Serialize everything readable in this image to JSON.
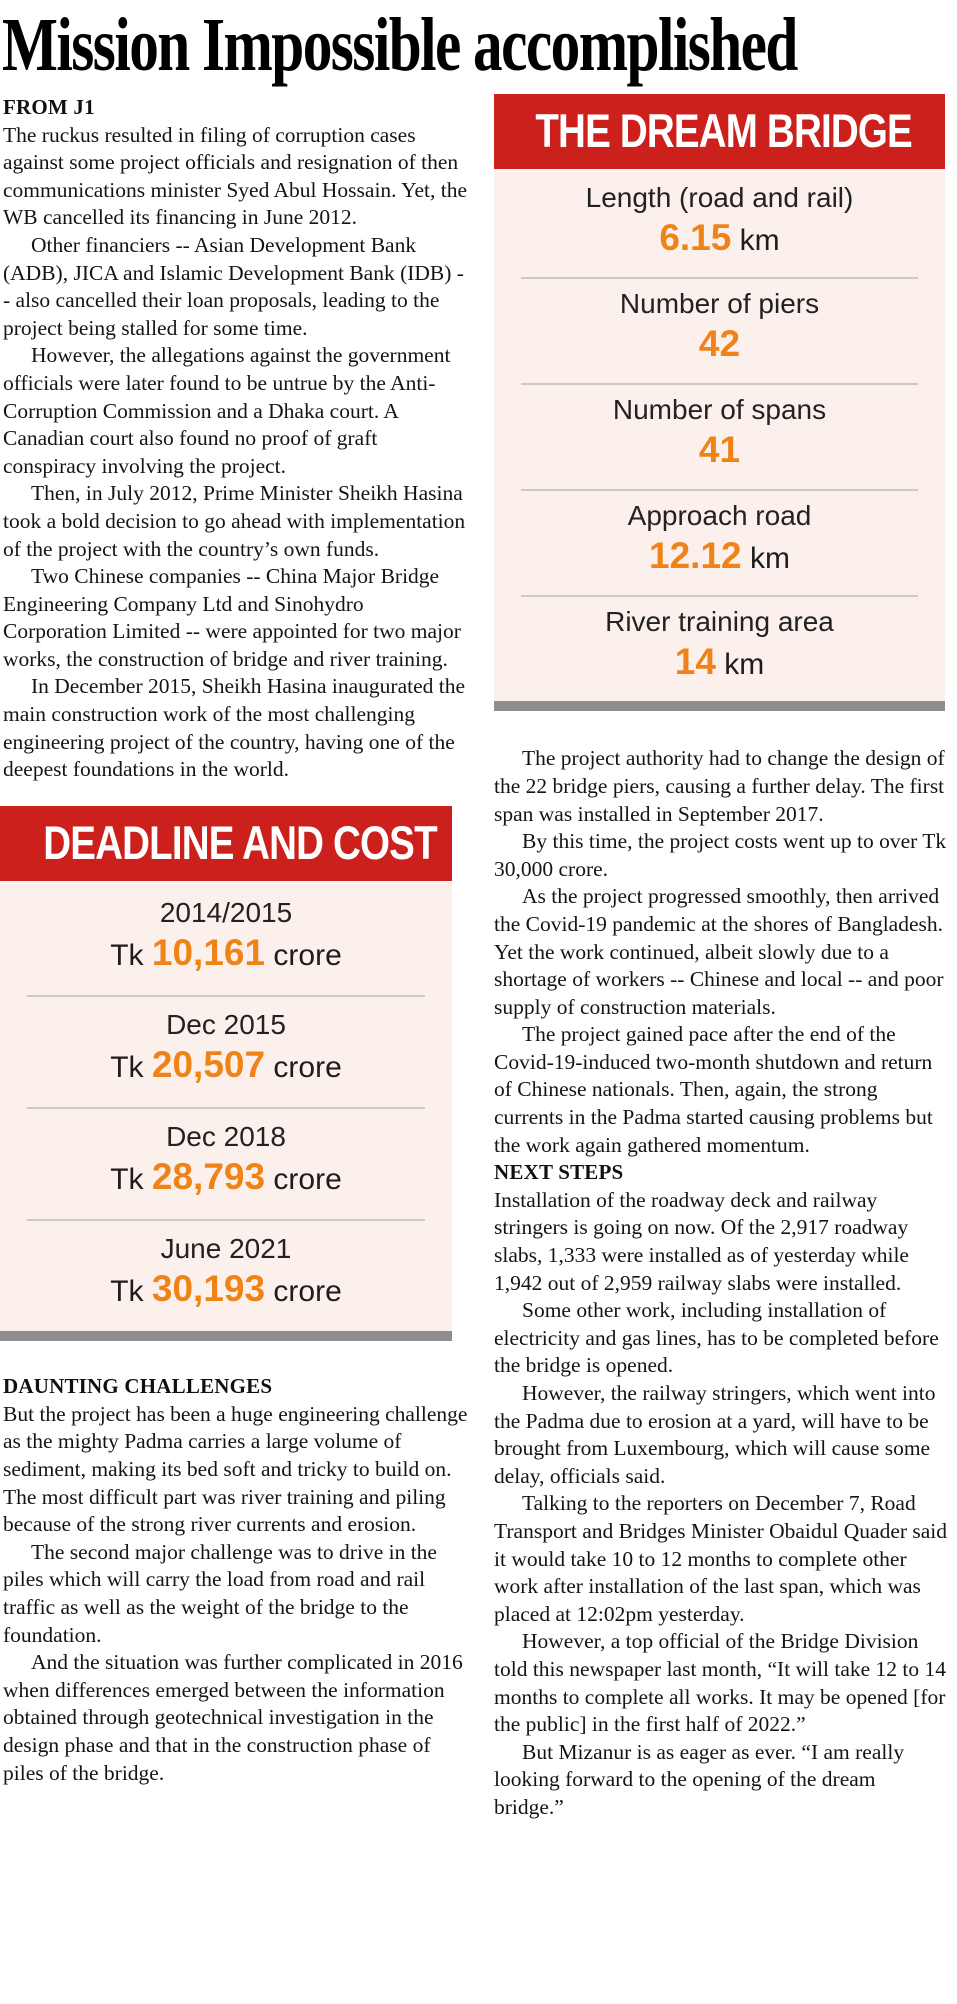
{
  "headline": "Mission Impossible accomplished",
  "colors": {
    "red": "#cc201c",
    "orange": "#ef8318",
    "boxbg": "#fbf0ec",
    "bar": "#8e8e8e",
    "divider": "#c9c9c9",
    "ink": "#141414"
  },
  "article": {
    "from_tag": "FROM J1",
    "left_paragraphs": [
      "The ruckus resulted in filing of corruption cases against some project officials and resignation of then communications minister Syed Abul Hossain. Yet, the WB cancelled its financing in June 2012.",
      "Other financiers -- Asian Development Bank (ADB), JICA and Islamic Development Bank (IDB) -- also cancelled their loan proposals, leading to the project being stalled for some time.",
      "However, the allegations against the government officials were later found to be untrue by the Anti-Corruption Commission and a Dhaka court. A Canadian court also found no proof of graft conspiracy involving the project.",
      "Then, in July 2012, Prime Minister Sheikh Hasina took a bold decision to go ahead with implementation of the project with the country’s own funds.",
      "Two Chinese companies -- China Major Bridge Engineering Company Ltd and Sinohydro Corporation Limited -- were appointed for two major works, the construction of bridge and river training.",
      "In December 2015, Sheikh Hasina inaugurated the main construction work of the most challenging engineering project of the country, having one of the deepest foundations in the world."
    ],
    "daunting_header": "DAUNTING CHALLENGES",
    "daunting_paragraphs": [
      "But the project has been a huge engineering challenge as the mighty Padma carries a large volume of sediment, making its bed soft and tricky to build on. The most difficult part was river training and piling because of the strong river currents and erosion.",
      "The second major challenge was to drive in the piles which will carry the load from road and rail traffic as well as the weight of the bridge to the foundation.",
      "And the situation was further complicated in 2016 when differences emerged between the information obtained through geotechnical investigation in the design phase and that in the construction phase of piles of the bridge."
    ],
    "right_paragraphs": [
      "The project authority had to change the design of the 22 bridge piers, causing a further delay. The first span was installed in September 2017.",
      "By this time, the project costs went up to over Tk 30,000 crore.",
      "As the project progressed smoothly, then arrived the Covid-19 pandemic at the shores of Bangladesh. Yet the work continued, albeit slowly due to a shortage of workers -- Chinese and local -- and poor supply of construction materials.",
      "The project gained pace after the end of the Covid-19-induced two-month shutdown and return of Chinese nationals. Then, again, the strong currents in the Padma started causing problems but the work again gathered momentum."
    ],
    "next_steps_header": "NEXT STEPS",
    "next_steps_paragraphs": [
      "Installation of the roadway deck and railway stringers is going on now. Of the 2,917 roadway slabs, 1,333 were installed as of yesterday while 1,942 out of 2,959 railway slabs were installed.",
      "Some other work, including installation of electricity and gas lines, has to be completed before the bridge is opened.",
      "However, the railway stringers, which went into the Padma due to erosion at a yard, will have to be brought from Luxembourg, which will cause some delay, officials said.",
      "Talking to the reporters on December 7, Road Transport and Bridges Minister Obaidul Quader said it would take 10 to 12 months to complete other work after installation of the last span, which was placed at 12:02pm yesterday.",
      "However, a top official of the Bridge Division told this newspaper last month, “It will take 12 to 14 months to complete all works. It may be opened [for the public] in the first half of 2022.”",
      "But Mizanur is as eager as ever. “I am really looking forward to the opening of the dream bridge.”"
    ]
  },
  "dream_bridge_box": {
    "title": "THE DREAM BRIDGE",
    "items": [
      {
        "label": "Length (road and rail)",
        "value": "6.15",
        "unit": " km"
      },
      {
        "label": "Number of piers",
        "value": "42",
        "unit": ""
      },
      {
        "label": "Number of spans",
        "value": "41",
        "unit": ""
      },
      {
        "label": "Approach road",
        "value": "12.12",
        "unit": " km"
      },
      {
        "label": "River training area",
        "value": "14",
        "unit": " km"
      }
    ]
  },
  "deadline_box": {
    "title": "DEADLINE AND COST",
    "items": [
      {
        "label": "2014/2015",
        "prefix": "Tk ",
        "value": "10,161",
        "suffix": " crore"
      },
      {
        "label": "Dec 2015",
        "prefix": "Tk ",
        "value": "20,507",
        "suffix": " crore"
      },
      {
        "label": "Dec 2018",
        "prefix": "Tk ",
        "value": "28,793",
        "suffix": " crore"
      },
      {
        "label": "June 2021",
        "prefix": "Tk ",
        "value": "30,193",
        "suffix": " crore"
      }
    ]
  }
}
